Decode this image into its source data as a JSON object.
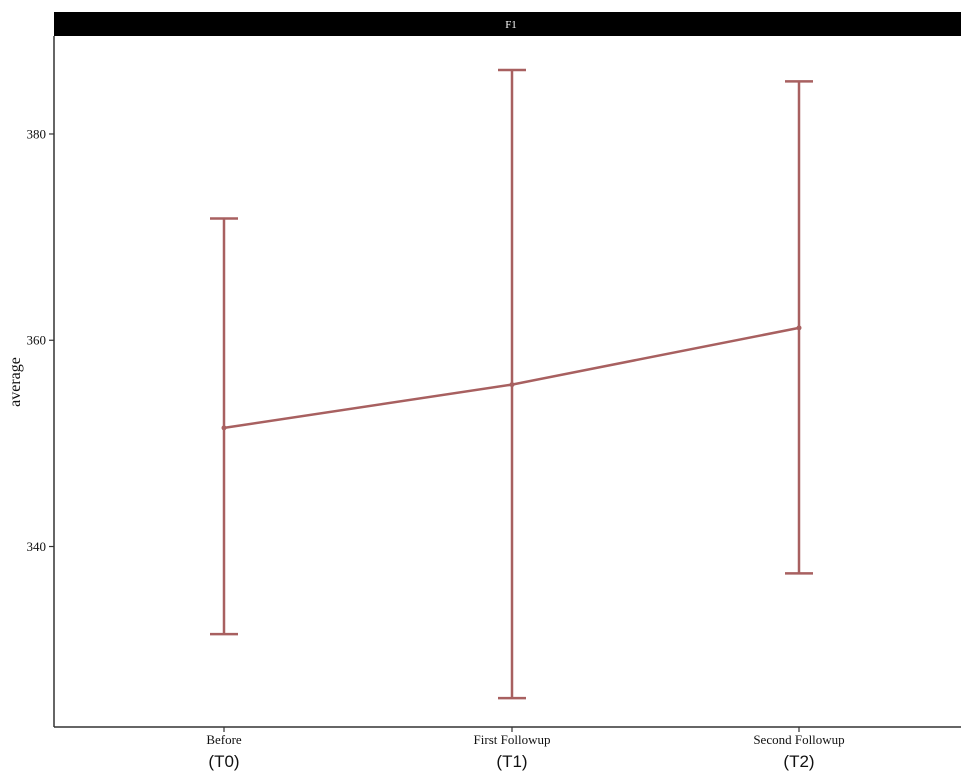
{
  "chart_data": {
    "type": "line",
    "title": "F1",
    "xlabel": "",
    "ylabel": "average",
    "categories": [
      "Before",
      "First Followup",
      "Second Followup"
    ],
    "category_sublabels": [
      "(T0)",
      "(T1)",
      "(T2)"
    ],
    "series": [
      {
        "values": [
          351.5,
          355.7,
          361.2
        ],
        "error_low": [
          331.5,
          325.3,
          337.4
        ],
        "error_high": [
          371.8,
          386.2,
          385.1
        ]
      }
    ],
    "yticks": [
      340,
      360,
      380
    ],
    "ylim": [
      322.5,
      389.5
    ],
    "grid": false,
    "legend": "none",
    "colors": {
      "series": "#a86060",
      "strip_background": "#000000",
      "strip_text": "#ffffff",
      "axis": "#333333"
    }
  }
}
